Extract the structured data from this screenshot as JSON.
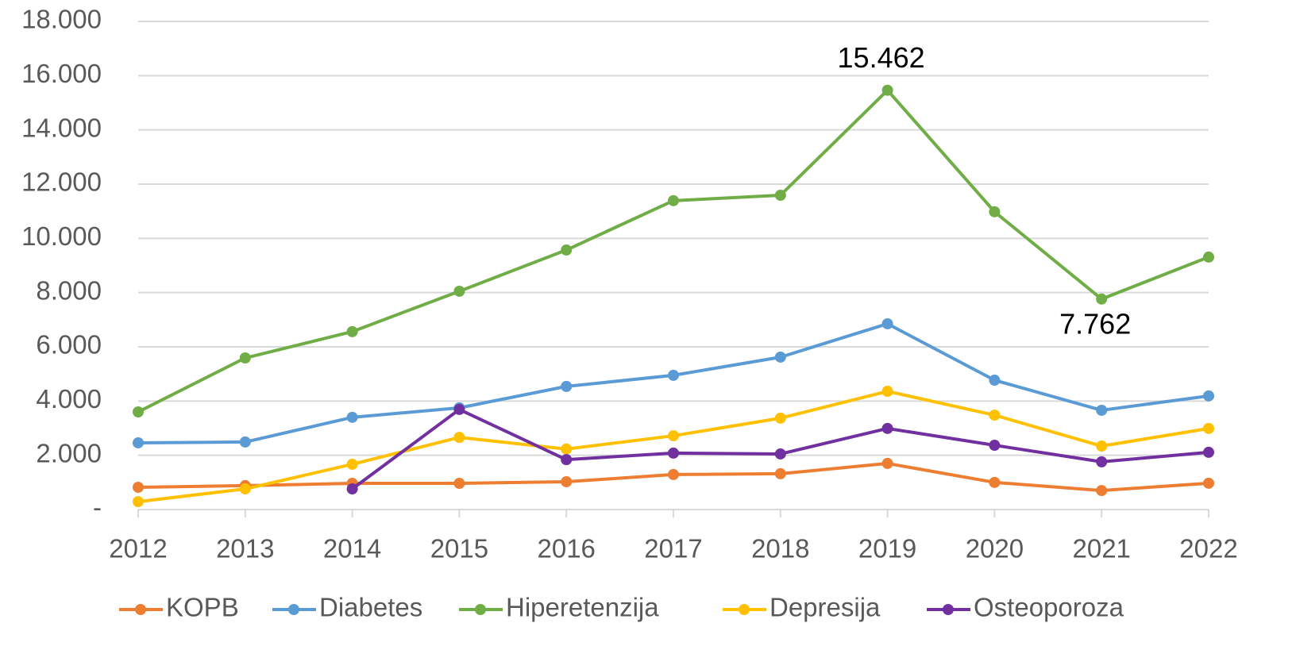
{
  "chart_data": {
    "type": "line",
    "categories": [
      "2012",
      "2013",
      "2014",
      "2015",
      "2016",
      "2017",
      "2018",
      "2019",
      "2020",
      "2021",
      "2022"
    ],
    "series": [
      {
        "name": "KOPB",
        "color": "#ed7d31",
        "values": [
          820,
          880,
          966,
          966,
          1025,
          1290,
          1320,
          1700,
          1000,
          700,
          970
        ]
      },
      {
        "name": "Diabetes",
        "color": "#5b9bd5",
        "values": [
          2460,
          2490,
          3400,
          3750,
          4540,
          4950,
          5620,
          6850,
          4770,
          3660,
          4190
        ]
      },
      {
        "name": "Hiperetenzija",
        "color": "#70ad47",
        "values": [
          3600,
          5590,
          6560,
          8050,
          9570,
          11390,
          11590,
          15462,
          10980,
          7762,
          9310
        ],
        "value_labels": [
          null,
          null,
          null,
          null,
          null,
          null,
          null,
          "15.462",
          null,
          "7.762",
          null
        ]
      },
      {
        "name": "Depresija",
        "color": "#ffc000",
        "values": [
          290,
          760,
          1670,
          2660,
          2230,
          2720,
          3370,
          4360,
          3480,
          2340,
          2990
        ]
      },
      {
        "name": "Osteoporoza",
        "color": "#7030a0",
        "values": [
          null,
          null,
          760,
          3690,
          1840,
          2080,
          2050,
          2990,
          2370,
          1760,
          2110
        ]
      }
    ],
    "ylim": [
      0,
      18000
    ],
    "yticks": [
      {
        "value": 0,
        "label": "-"
      },
      {
        "value": 2000,
        "label": "2.000"
      },
      {
        "value": 4000,
        "label": "4.000"
      },
      {
        "value": 6000,
        "label": "6.000"
      },
      {
        "value": 8000,
        "label": "8.000"
      },
      {
        "value": 10000,
        "label": "10.000"
      },
      {
        "value": 12000,
        "label": "12.000"
      },
      {
        "value": 14000,
        "label": "14.000"
      },
      {
        "value": 16000,
        "label": "16.000"
      },
      {
        "value": 18000,
        "label": "18.000"
      }
    ],
    "grid": true,
    "legend": "bottom"
  }
}
